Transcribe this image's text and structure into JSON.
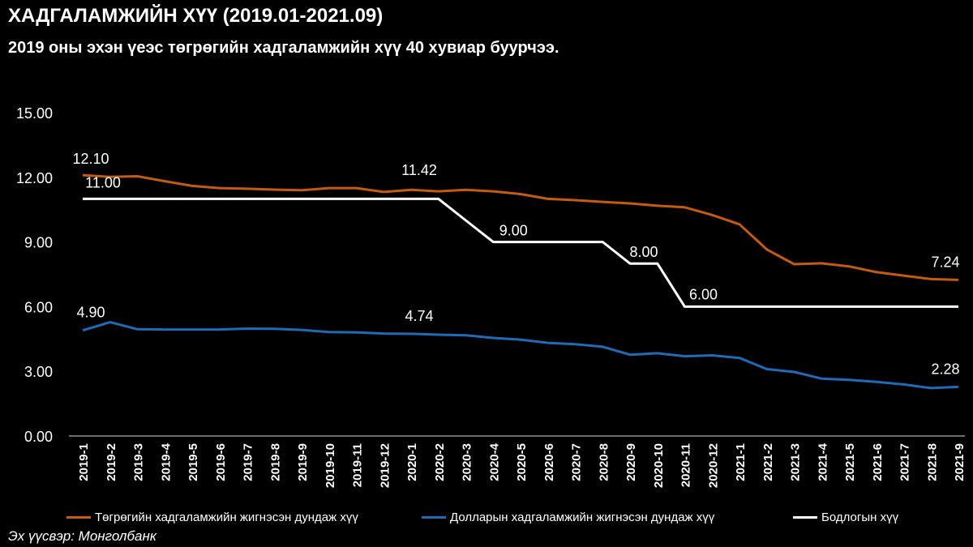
{
  "title": "ХАДГАЛАМЖИЙН ХҮҮ (2019.01-2021.09)",
  "subtitle": "2019 оны эхэн үеэс төгрөгийн хадгаламжийн хүү 40 хувиар буурчээ.",
  "source": "Эх үүсвэр: Монголбанк",
  "colors": {
    "background": "#000000",
    "tugrik": "#C55A11",
    "dollar": "#1F6BB5",
    "policy": "#FFFFFF"
  },
  "chart_data": {
    "type": "line",
    "y_ticks": [
      "0.00",
      "3.00",
      "6.00",
      "9.00",
      "12.00",
      "15.00"
    ],
    "ylim": [
      0,
      15
    ],
    "grid": false,
    "legend_position": "bottom",
    "categories": [
      "2019-1",
      "2019-2",
      "2019-3",
      "2019-4",
      "2019-5",
      "2019-6",
      "2019-7",
      "2019-8",
      "2019-9",
      "2019-10",
      "2019-11",
      "2019-12",
      "2020-1",
      "2020-2",
      "2020-3",
      "2020-4",
      "2020-5",
      "2020-6",
      "2020-7",
      "2020-8",
      "2020-9",
      "2020-10",
      "2020-11",
      "2020-12",
      "2021-1",
      "2021-2",
      "2021-3",
      "2021-4",
      "2021-5",
      "2021-6",
      "2021-7",
      "2021-8",
      "2021-9"
    ],
    "series": [
      {
        "name": "Төгрөгийн хадгаламжийн  жигнэсэн дундаж хүү",
        "color": "#C55A11",
        "values": [
          12.1,
          12.02,
          12.05,
          11.82,
          11.6,
          11.5,
          11.47,
          11.43,
          11.4,
          11.5,
          11.5,
          11.32,
          11.42,
          11.35,
          11.42,
          11.35,
          11.22,
          11.0,
          10.94,
          10.86,
          10.79,
          10.68,
          10.61,
          10.25,
          9.82,
          8.65,
          7.97,
          8.01,
          7.87,
          7.6,
          7.44,
          7.28,
          7.24
        ]
      },
      {
        "name": "Долларын хадгаламжийн  жигнэсэн дундаж хүү",
        "color": "#1F6BB5",
        "values": [
          4.9,
          5.28,
          4.95,
          4.94,
          4.94,
          4.94,
          4.98,
          4.97,
          4.92,
          4.82,
          4.81,
          4.75,
          4.74,
          4.7,
          4.67,
          4.55,
          4.47,
          4.32,
          4.26,
          4.14,
          3.77,
          3.84,
          3.7,
          3.74,
          3.62,
          3.1,
          2.97,
          2.66,
          2.6,
          2.51,
          2.39,
          2.22,
          2.28
        ]
      },
      {
        "name": "Бодлогын хүү",
        "color": "#FFFFFF",
        "step": true,
        "values": [
          11.0,
          11.0,
          11.0,
          11.0,
          11.0,
          11.0,
          11.0,
          11.0,
          11.0,
          11.0,
          11.0,
          11.0,
          11.0,
          11.0,
          10.0,
          9.0,
          9.0,
          9.0,
          9.0,
          9.0,
          8.0,
          8.0,
          6.0,
          6.0,
          6.0,
          6.0,
          6.0,
          6.0,
          6.0,
          6.0,
          6.0,
          6.0,
          6.0
        ]
      }
    ],
    "data_labels": [
      {
        "series": 0,
        "index": 0,
        "text": "12.10"
      },
      {
        "series": 0,
        "index": 12,
        "text": "11.42"
      },
      {
        "series": 0,
        "index": 32,
        "text": "7.24"
      },
      {
        "series": 1,
        "index": 0,
        "text": "4.90"
      },
      {
        "series": 1,
        "index": 12,
        "text": "4.74"
      },
      {
        "series": 1,
        "index": 32,
        "text": "2.28"
      },
      {
        "series": 2,
        "index": 0,
        "text": "11.00"
      },
      {
        "series": 2,
        "index": 15,
        "text": "9.00"
      },
      {
        "series": 2,
        "index": 20,
        "text": "8.00"
      },
      {
        "series": 2,
        "index": 22,
        "text": "6.00"
      }
    ]
  }
}
